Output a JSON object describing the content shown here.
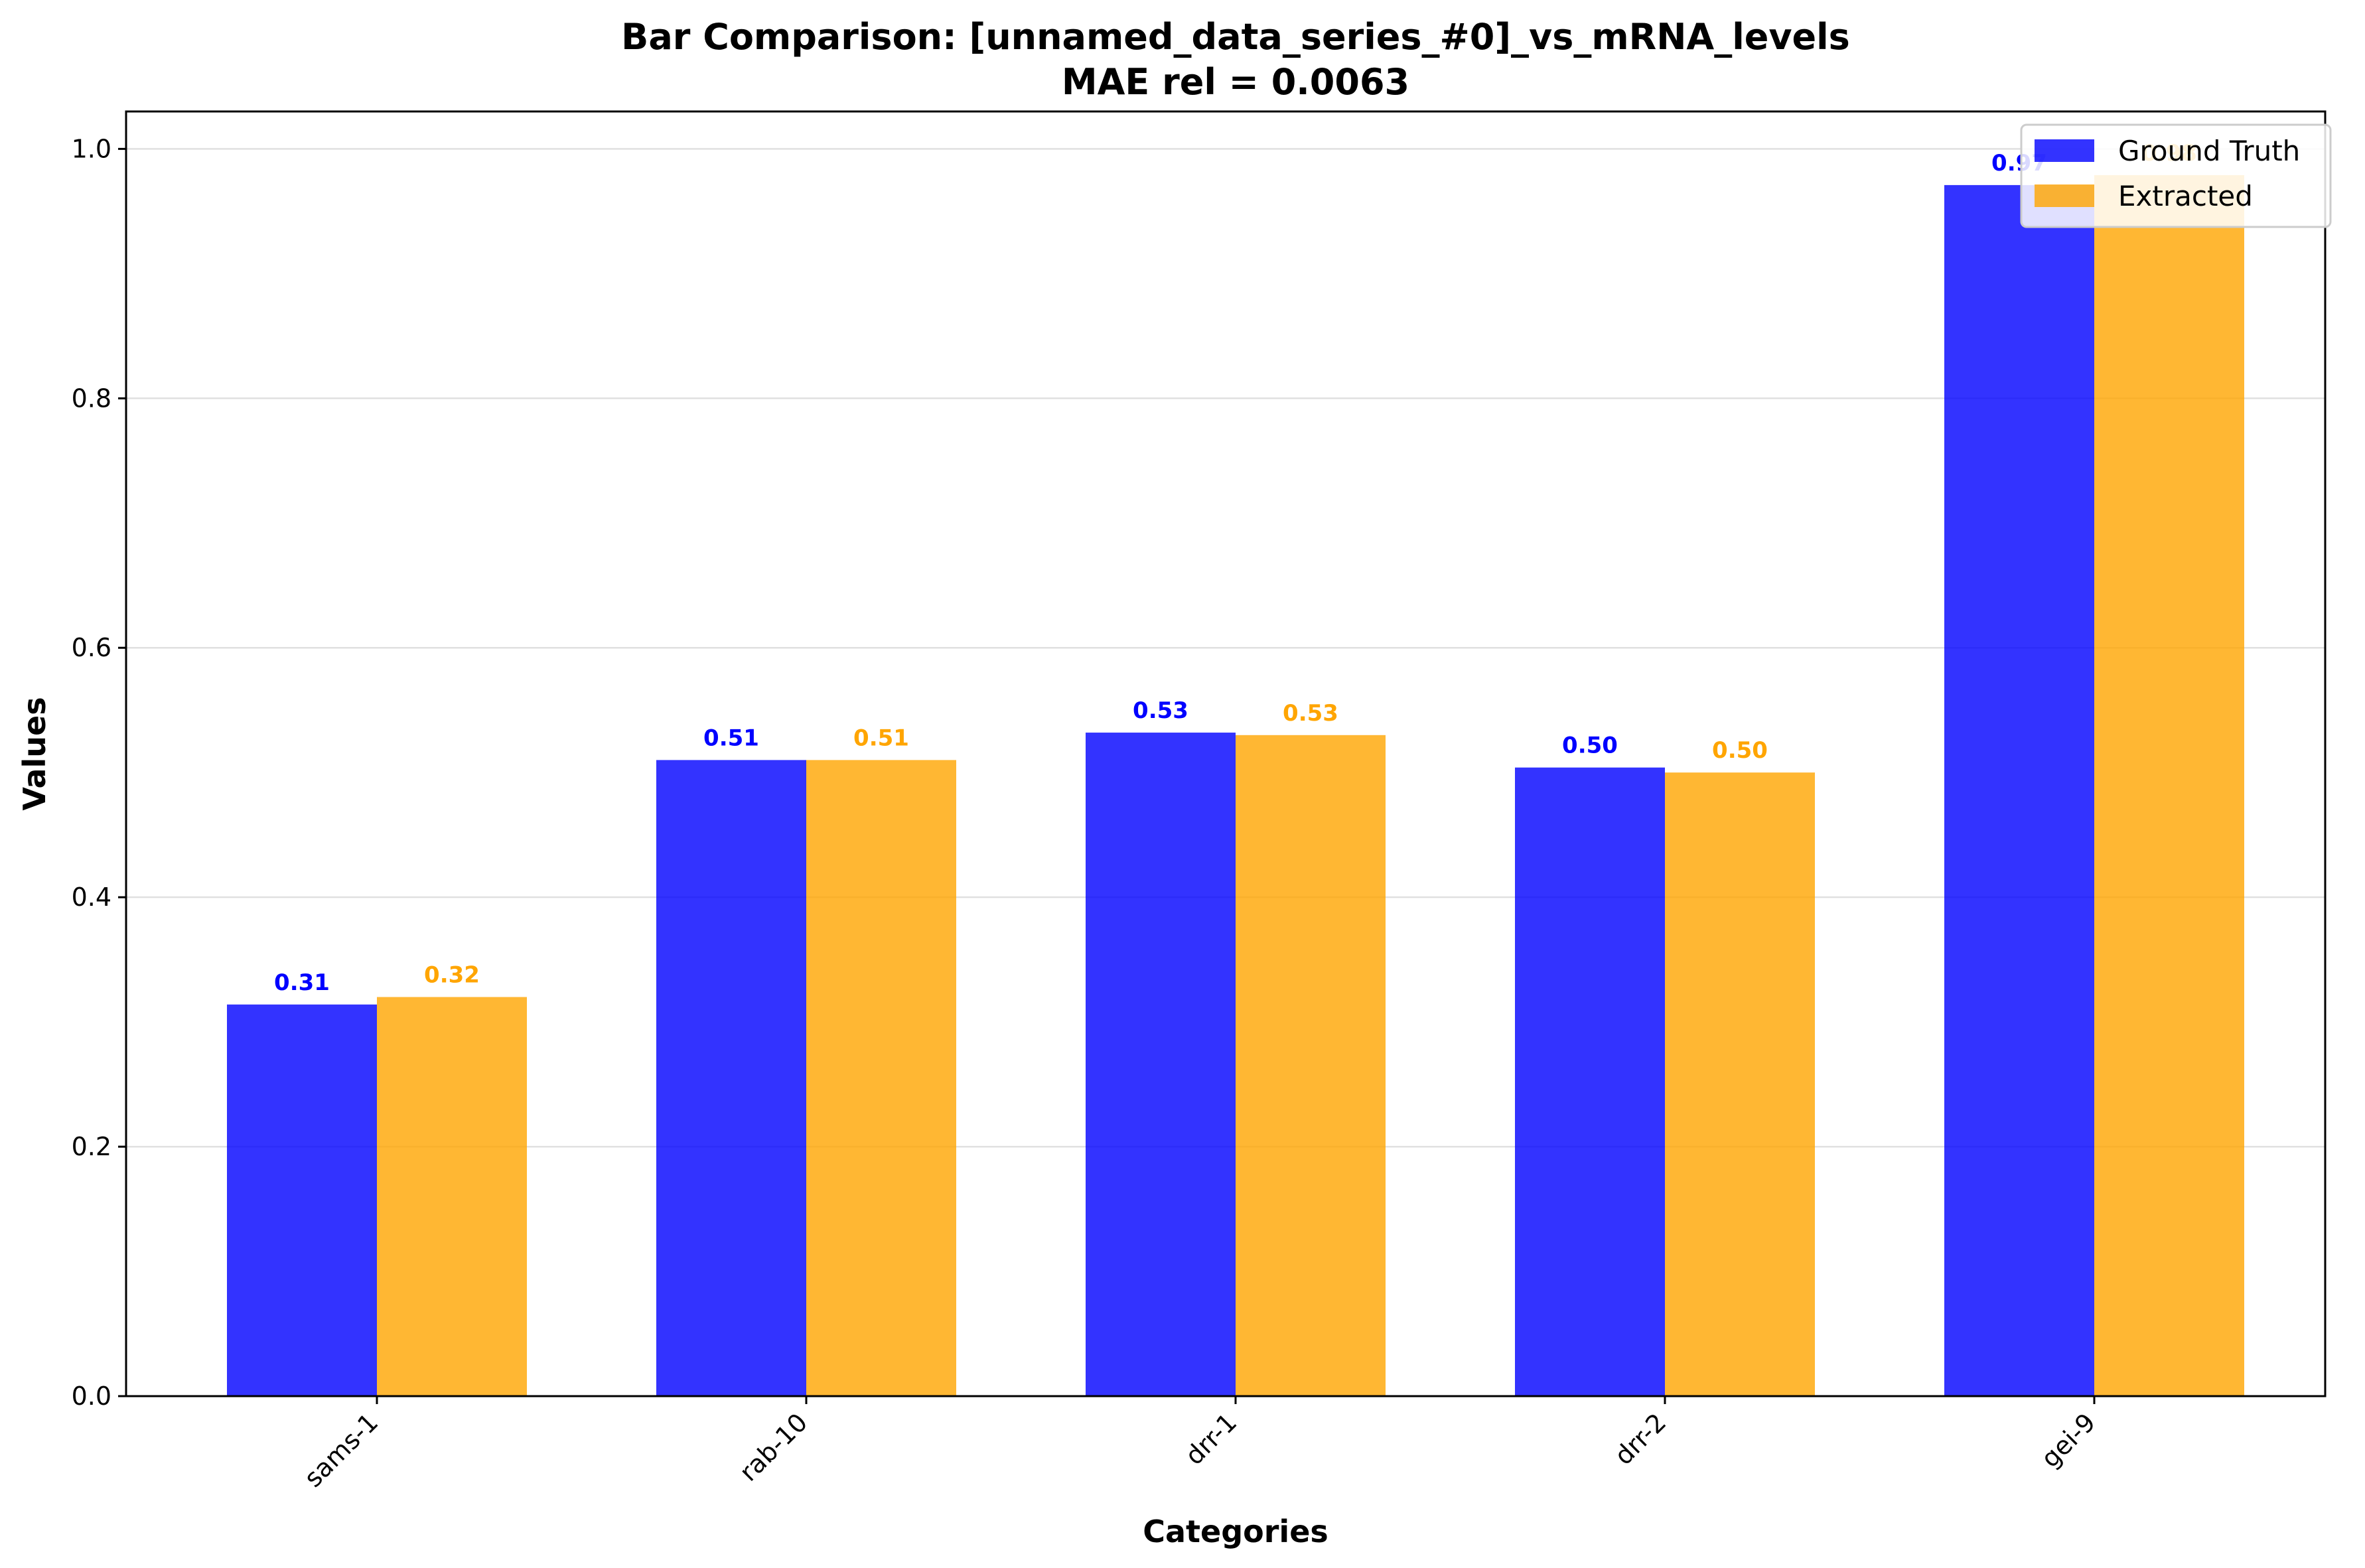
{
  "chart_data": {
    "type": "bar",
    "title": "Bar Comparison: [unnamed_data_series_#0]_vs_mRNA_levels",
    "subtitle": "MAE rel = 0.0063",
    "xlabel": "Categories",
    "ylabel": "Values",
    "categories": [
      "sams-1",
      "rab-10",
      "drr-1",
      "drr-2",
      "gei-9"
    ],
    "series": [
      {
        "name": "Ground Truth",
        "color": "#0000ff",
        "values": [
          0.314,
          0.51,
          0.532,
          0.504,
          0.971
        ],
        "labels": [
          "0.31",
          "0.51",
          "0.53",
          "0.50",
          "0.97"
        ]
      },
      {
        "name": "Extracted",
        "color": "#ffa500",
        "values": [
          0.32,
          0.51,
          0.53,
          0.5,
          0.979
        ],
        "labels": [
          "0.32",
          "0.51",
          "0.53",
          "0.50",
          "0.98"
        ]
      }
    ],
    "ylim": [
      0,
      1.03
    ],
    "yticks": [
      0.0,
      0.2,
      0.4,
      0.6,
      0.8,
      1.0
    ],
    "ytick_labels": [
      "0.0",
      "0.2",
      "0.4",
      "0.6",
      "0.8",
      "1.0"
    ],
    "grid": "horizontal",
    "legend_position": "top-right"
  }
}
